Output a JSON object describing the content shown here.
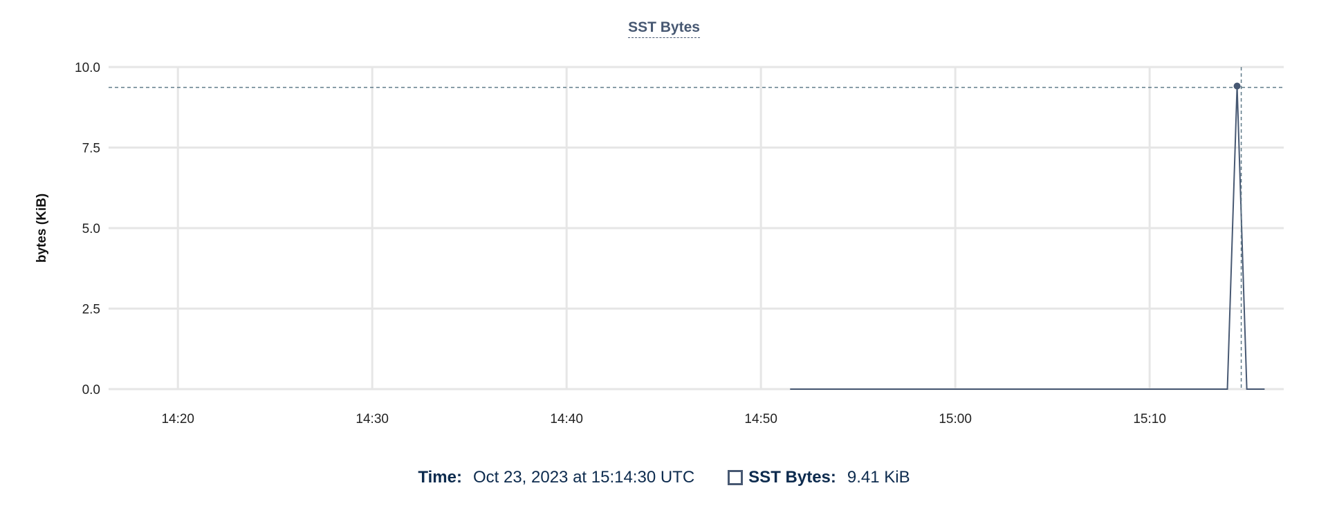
{
  "chart_data": {
    "type": "line",
    "title": "SST Bytes",
    "xlabel": "",
    "ylabel": "bytes (KiB)",
    "ylim": [
      0,
      10
    ],
    "yticks": [
      "0.0",
      "2.5",
      "5.0",
      "7.5",
      "10.0"
    ],
    "ytick_values": [
      0,
      2.5,
      5,
      7.5,
      10
    ],
    "xlim": [
      "14:16:26",
      "15:16:54"
    ],
    "xticks": [
      "14:20",
      "14:30",
      "14:40",
      "14:50",
      "15:00",
      "15:10"
    ],
    "grid": true,
    "series": [
      {
        "name": "SST Bytes",
        "color": "#475872",
        "x": [
          "14:51:30",
          "15:14:00",
          "15:14:30",
          "15:15:00",
          "15:15:55"
        ],
        "y": [
          0,
          0,
          9.41,
          0,
          0
        ]
      }
    ],
    "hover": {
      "x": "15:14:30",
      "y": 9.41
    }
  },
  "legend": {
    "time_label": "Time:",
    "time_value": "Oct 23, 2023 at 15:14:30 UTC",
    "series_label": "SST Bytes:",
    "series_value": "9.41 KiB"
  }
}
